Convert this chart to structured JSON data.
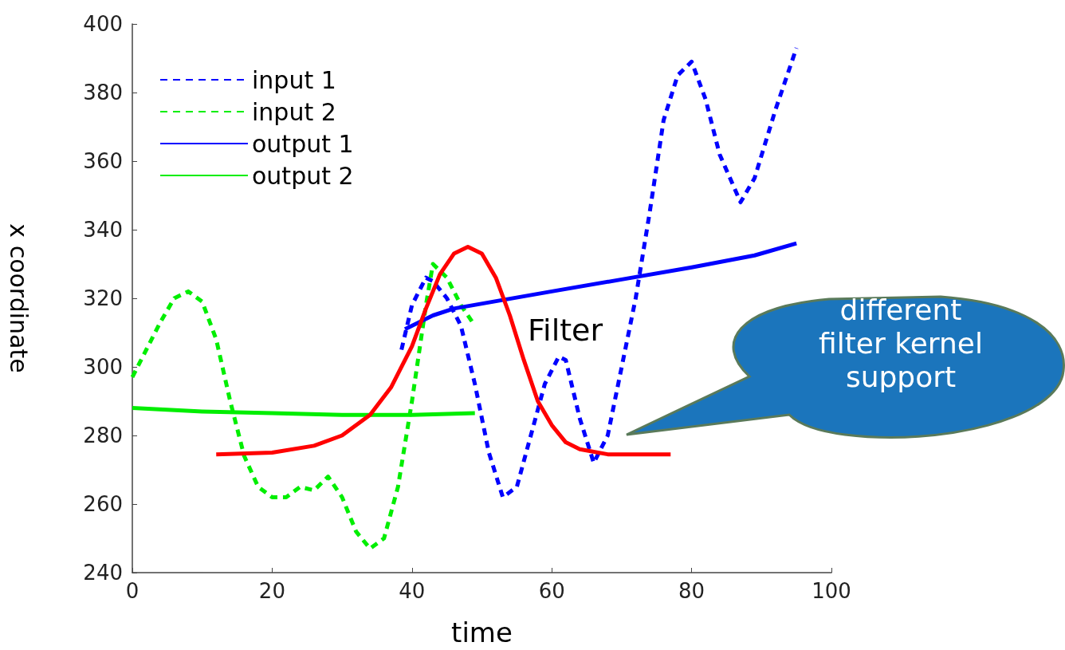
{
  "chart_data": {
    "type": "line",
    "xlabel": "time",
    "ylabel": "x coordinate",
    "xlim": [
      0,
      100
    ],
    "xticks": [
      0,
      20,
      40,
      60,
      80,
      100
    ],
    "ylim": [
      240,
      400
    ],
    "yticks": [
      240,
      260,
      280,
      300,
      320,
      340,
      360,
      380,
      400
    ],
    "grid": false,
    "legend": "top left",
    "marker": "none",
    "series": [
      {
        "name": "input 1",
        "color": "#0000ff",
        "line_style": "dashed",
        "x": [
          38.5,
          40,
          42,
          43,
          45,
          47,
          49,
          51,
          53,
          55,
          57,
          59,
          61,
          62,
          64,
          66,
          68,
          70,
          72,
          74,
          76,
          78,
          80,
          82,
          84,
          87,
          89,
          92,
          95
        ],
        "values": [
          305,
          318,
          326,
          325,
          320,
          312,
          295,
          275,
          262,
          265,
          280,
          295,
          303,
          302,
          285,
          272,
          280,
          300,
          320,
          345,
          372,
          385,
          389,
          378,
          362,
          348,
          355,
          375,
          393
        ]
      },
      {
        "name": "input 2",
        "color": "#00ee00",
        "line_style": "dashed",
        "x": [
          0,
          2,
          4,
          6,
          8,
          10,
          12,
          14,
          16,
          18,
          20,
          22,
          24,
          26,
          28,
          30,
          32,
          34,
          36,
          38,
          40,
          42,
          43,
          45,
          47,
          49
        ],
        "values": [
          297,
          305,
          313,
          320,
          322,
          319,
          308,
          290,
          274,
          265,
          262,
          262,
          265,
          264,
          268,
          262,
          252,
          247,
          250,
          265,
          290,
          318,
          330,
          326,
          318,
          312
        ]
      },
      {
        "name": "output 1",
        "color": "#0000ff",
        "line_style": "solid",
        "x": [
          39,
          43,
          46,
          60,
          70,
          80,
          89,
          95
        ],
        "values": [
          311,
          315,
          317,
          322,
          325.5,
          329,
          332.5,
          336
        ]
      },
      {
        "name": "output 2",
        "color": "#00ee00",
        "line_style": "solid",
        "x": [
          0,
          10,
          20,
          30,
          40,
          49
        ],
        "values": [
          288,
          287,
          286.5,
          286,
          286,
          286.5
        ]
      },
      {
        "color": "#ff0000",
        "line_style": "solid",
        "x": [
          12,
          20,
          26,
          30,
          34,
          37,
          40,
          42,
          44,
          46,
          48,
          50,
          52,
          54,
          56,
          58,
          60,
          62,
          64,
          68,
          77
        ],
        "values": [
          274.5,
          275,
          277,
          280,
          286,
          294,
          306,
          317,
          327,
          333,
          335,
          333,
          326,
          315,
          302,
          290,
          283,
          278,
          276,
          274.5,
          274.5
        ]
      }
    ],
    "annotations": [
      "Filter",
      "different filter kernel support"
    ]
  }
}
